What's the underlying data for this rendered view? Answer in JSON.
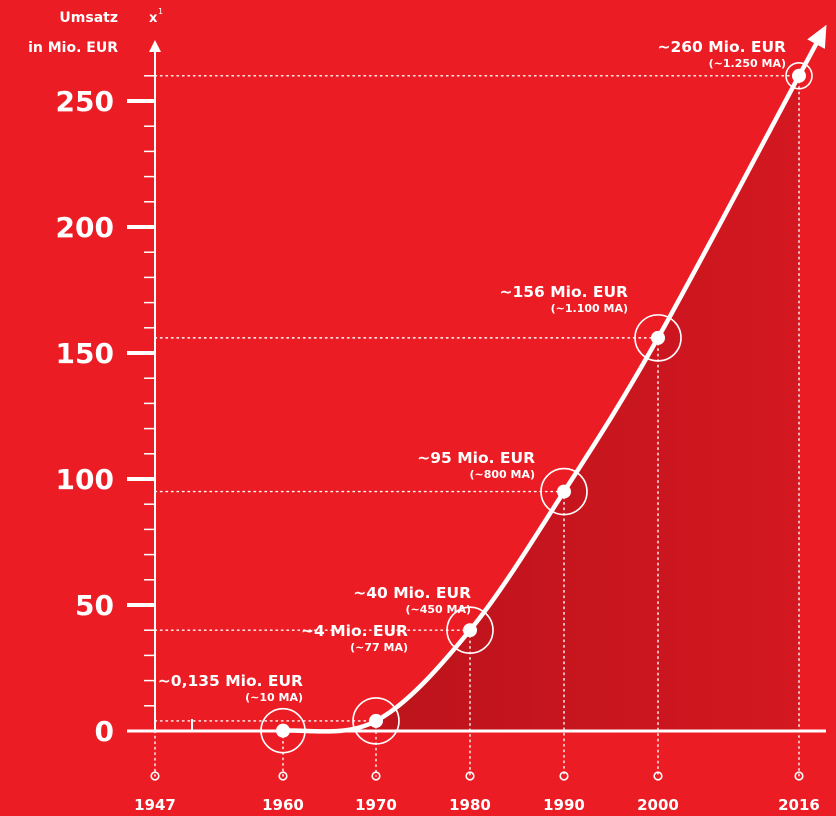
{
  "chart_data": {
    "type": "line",
    "ylabel_lines": [
      "Umsatz",
      "in Mio. EUR"
    ],
    "y_axis_symbol": "x",
    "y_axis_symbol_sup": "1",
    "ylim": [
      0,
      260
    ],
    "y_major_ticks": [
      0,
      50,
      100,
      150,
      200,
      250
    ],
    "y_minor_step": 10,
    "x_categories": [
      "1947",
      "1960",
      "1970",
      "1980",
      "1990",
      "2000",
      "2016"
    ],
    "grid": false,
    "series": [
      {
        "points": [
          {
            "x": "1960",
            "y": 0.135,
            "label": "~0,135 Mio. EUR",
            "sublabel": "(~10 MA)"
          },
          {
            "x": "1970",
            "y": 4,
            "label": "~4 Mio. EUR",
            "sublabel": "(~77 MA)"
          },
          {
            "x": "1980",
            "y": 40,
            "label": "~40 Mio. EUR",
            "sublabel": "(~450 MA)"
          },
          {
            "x": "1990",
            "y": 95,
            "label": "~95 Mio. EUR",
            "sublabel": "(~800 MA)"
          },
          {
            "x": "2000",
            "y": 156,
            "label": "~156 Mio. EUR",
            "sublabel": "(~1.100 MA)"
          },
          {
            "x": "2016",
            "y": 260,
            "label": "~260 Mio. EUR",
            "sublabel": "(~1.250 MA)"
          }
        ]
      }
    ],
    "colors": {
      "background": "#ec1c24",
      "foreground": "#ffffff",
      "area_fill": "#b5121b"
    }
  }
}
